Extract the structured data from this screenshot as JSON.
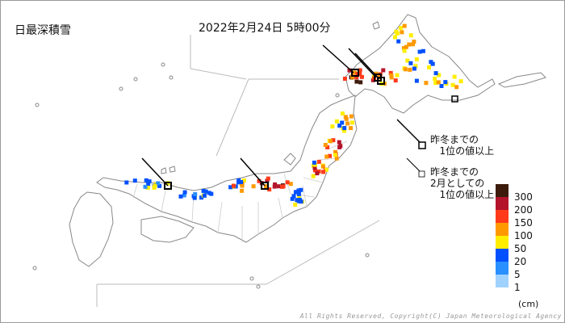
{
  "title": "日最深積雪",
  "timestamp": "2022年2月24日 5時00分",
  "notes": {
    "record_all": "昨冬までの\n   1位の値以上",
    "record_feb": "昨冬までの\n2月としての\n   1位の値以上"
  },
  "legend": {
    "unit": "(cm)",
    "items": [
      {
        "label": "300",
        "color": "#3d1b0c"
      },
      {
        "label": "200",
        "color": "#b3142b"
      },
      {
        "label": "150",
        "color": "#ff3a1a"
      },
      {
        "label": "100",
        "color": "#ff9900"
      },
      {
        "label": "50",
        "color": "#ffee00"
      },
      {
        "label": "20",
        "color": "#0050ff"
      },
      {
        "label": "5",
        "color": "#2a8fff"
      },
      {
        "label": "1",
        "color": "#a0d2ff"
      }
    ]
  },
  "copyright": "All Rights Reserved, Copyright(C) Japan Meteorological Agency"
}
